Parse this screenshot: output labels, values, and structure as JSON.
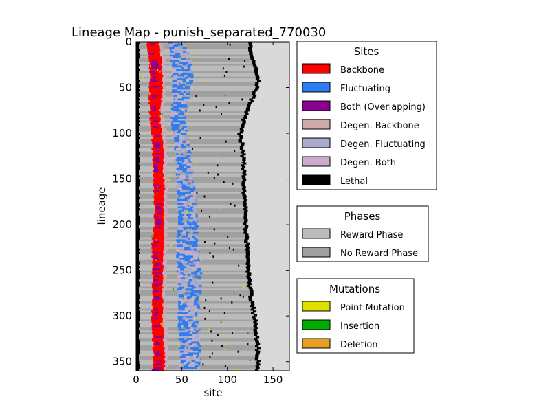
{
  "chart_data": {
    "type": "heatmap",
    "title": "Lineage Map - punish_separated_770030",
    "xlabel": "site",
    "ylabel": "lineage",
    "xlim": [
      0,
      168
    ],
    "ylim": [
      360,
      0
    ],
    "x_ticks": [
      0,
      50,
      100,
      150
    ],
    "y_ticks": [
      0,
      50,
      100,
      150,
      200,
      250,
      300,
      350
    ],
    "background_color": "#d9d9d9",
    "grid": false,
    "profile": {
      "lineage": [
        0,
        20,
        40,
        60,
        80,
        100,
        120,
        140,
        160,
        180,
        200,
        220,
        240,
        260,
        280,
        300,
        320,
        340,
        360
      ],
      "lethal_left": [
        0,
        0,
        0,
        0,
        0,
        0,
        0,
        0,
        0,
        0,
        0,
        0,
        0,
        0,
        0,
        0,
        0,
        0,
        0
      ],
      "backbone_start": [
        12,
        14,
        15,
        14,
        15,
        17,
        18,
        19,
        19,
        20,
        20,
        17,
        18,
        18,
        18,
        17,
        18,
        19,
        18
      ],
      "backbone_end": [
        25,
        28,
        29,
        28,
        26,
        28,
        31,
        30,
        31,
        30,
        31,
        31,
        30,
        29,
        29,
        29,
        30,
        31,
        31
      ],
      "fluct_start": [
        36,
        38,
        40,
        40,
        38,
        40,
        43,
        44,
        45,
        46,
        46,
        44,
        45,
        46,
        46,
        46,
        47,
        48,
        48
      ],
      "fluct_end": [
        55,
        60,
        62,
        58,
        55,
        56,
        60,
        62,
        64,
        66,
        68,
        68,
        70,
        72,
        70,
        68,
        70,
        70,
        70
      ],
      "lethal_right": [
        122,
        126,
        132,
        126,
        117,
        112,
        115,
        116,
        116,
        117,
        118,
        120,
        120,
        122,
        124,
        128,
        130,
        132,
        130
      ]
    },
    "legends": [
      {
        "title": "Sites",
        "position": "upper-right",
        "items": [
          {
            "label": "Backbone",
            "color": "#ff0000"
          },
          {
            "label": "Fluctuating",
            "color": "#2f7cf0"
          },
          {
            "label": "Both (Overlapping)",
            "color": "#8b0091"
          },
          {
            "label": "Degen. Backbone",
            "color": "#ccaaaa"
          },
          {
            "label": "Degen. Fluctuating",
            "color": "#aaaacc"
          },
          {
            "label": "Degen. Both",
            "color": "#ccaacc"
          },
          {
            "label": "Lethal",
            "color": "#000000"
          }
        ]
      },
      {
        "title": "Phases",
        "position": "center-right",
        "items": [
          {
            "label": "Reward Phase",
            "color": "#bbbbbb"
          },
          {
            "label": "No Reward Phase",
            "color": "#a0a0a0"
          }
        ]
      },
      {
        "title": "Mutations",
        "position": "lower-right",
        "items": [
          {
            "label": "Point Mutation",
            "color": "#e0e000"
          },
          {
            "label": "Insertion",
            "color": "#00aa00"
          },
          {
            "label": "Deletion",
            "color": "#e8a020"
          }
        ]
      }
    ]
  }
}
